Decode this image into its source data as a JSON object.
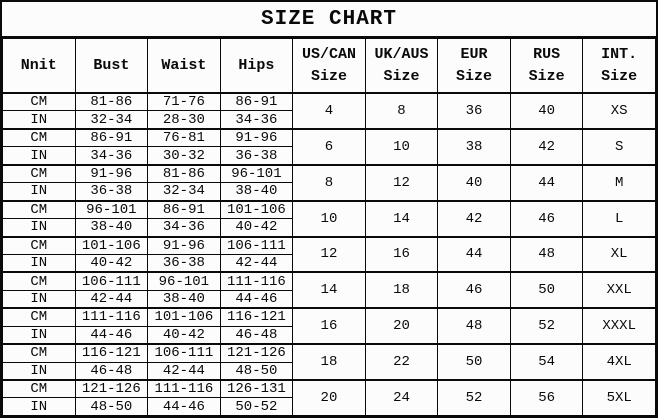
{
  "chart_data": {
    "type": "table",
    "title": "SIZE CHART",
    "columns": [
      "Nnit",
      "Bust",
      "Waist",
      "Hips",
      "US/CAN\nSize",
      "UK/AUS\nSize",
      "EUR\nSize",
      "RUS\nSize",
      "INT.\nSize"
    ],
    "unit_labels": {
      "cm": "CM",
      "in": "IN"
    },
    "sizes": [
      {
        "cm": {
          "bust": "81-86",
          "waist": "71-76",
          "hips": "86-91"
        },
        "in": {
          "bust": "32-34",
          "waist": "28-30",
          "hips": "34-36"
        },
        "us_can": "4",
        "uk_aus": "8",
        "eur": "36",
        "rus": "40",
        "int": "XS"
      },
      {
        "cm": {
          "bust": "86-91",
          "waist": "76-81",
          "hips": "91-96"
        },
        "in": {
          "bust": "34-36",
          "waist": "30-32",
          "hips": "36-38"
        },
        "us_can": "6",
        "uk_aus": "10",
        "eur": "38",
        "rus": "42",
        "int": "S"
      },
      {
        "cm": {
          "bust": "91-96",
          "waist": "81-86",
          "hips": "96-101"
        },
        "in": {
          "bust": "36-38",
          "waist": "32-34",
          "hips": "38-40"
        },
        "us_can": "8",
        "uk_aus": "12",
        "eur": "40",
        "rus": "44",
        "int": "M"
      },
      {
        "cm": {
          "bust": "96-101",
          "waist": "86-91",
          "hips": "101-106"
        },
        "in": {
          "bust": "38-40",
          "waist": "34-36",
          "hips": "40-42"
        },
        "us_can": "10",
        "uk_aus": "14",
        "eur": "42",
        "rus": "46",
        "int": "L"
      },
      {
        "cm": {
          "bust": "101-106",
          "waist": "91-96",
          "hips": "106-111"
        },
        "in": {
          "bust": "40-42",
          "waist": "36-38",
          "hips": "42-44"
        },
        "us_can": "12",
        "uk_aus": "16",
        "eur": "44",
        "rus": "48",
        "int": "XL"
      },
      {
        "cm": {
          "bust": "106-111",
          "waist": "96-101",
          "hips": "111-116"
        },
        "in": {
          "bust": "42-44",
          "waist": "38-40",
          "hips": "44-46"
        },
        "us_can": "14",
        "uk_aus": "18",
        "eur": "46",
        "rus": "50",
        "int": "XXL"
      },
      {
        "cm": {
          "bust": "111-116",
          "waist": "101-106",
          "hips": "116-121"
        },
        "in": {
          "bust": "44-46",
          "waist": "40-42",
          "hips": "46-48"
        },
        "us_can": "16",
        "uk_aus": "20",
        "eur": "48",
        "rus": "52",
        "int": "XXXL"
      },
      {
        "cm": {
          "bust": "116-121",
          "waist": "106-111",
          "hips": "121-126"
        },
        "in": {
          "bust": "46-48",
          "waist": "42-44",
          "hips": "48-50"
        },
        "us_can": "18",
        "uk_aus": "22",
        "eur": "50",
        "rus": "54",
        "int": "4XL"
      },
      {
        "cm": {
          "bust": "121-126",
          "waist": "111-116",
          "hips": "126-131"
        },
        "in": {
          "bust": "48-50",
          "waist": "44-46",
          "hips": "50-52"
        },
        "us_can": "20",
        "uk_aus": "24",
        "eur": "52",
        "rus": "56",
        "int": "5XL"
      }
    ],
    "layout": {
      "grid": true,
      "legend": false
    },
    "colors": {
      "border": "#0a0a0a",
      "background": "#fcfcfc",
      "text": "#0a0a0a"
    }
  }
}
